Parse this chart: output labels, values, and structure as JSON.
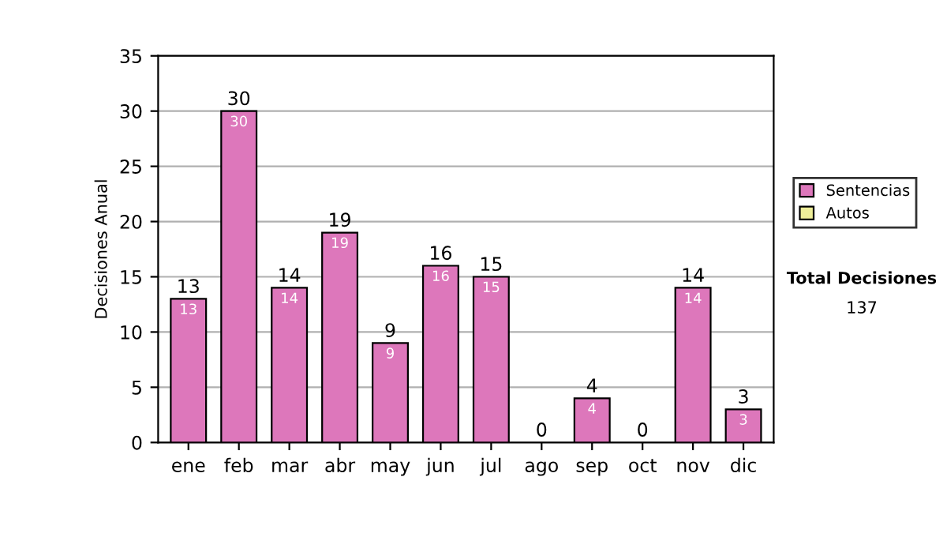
{
  "chart_data": {
    "type": "bar",
    "ylabel": "Decisiones Anual",
    "categories": [
      "ene",
      "feb",
      "mar",
      "abr",
      "may",
      "jun",
      "jul",
      "ago",
      "sep",
      "oct",
      "nov",
      "dic"
    ],
    "series": [
      {
        "name": "Sentencias",
        "color": "#dd77bb",
        "values": [
          13,
          30,
          14,
          19,
          9,
          16,
          15,
          0,
          4,
          0,
          14,
          3
        ],
        "value_labels": [
          "13",
          "30",
          "14",
          "19",
          "9",
          "16",
          "15",
          null,
          "4",
          null,
          "14",
          "3"
        ]
      },
      {
        "name": "Autos",
        "color": "#eeee99",
        "values": [
          0,
          0,
          0,
          0,
          0,
          0,
          0,
          0,
          0,
          0,
          0,
          0
        ]
      }
    ],
    "totals": [
      "13",
      "30",
      "14",
      "19",
      "9",
      "16",
      "15",
      "0",
      "4",
      "0",
      "14",
      "3"
    ],
    "ylim": [
      0,
      35
    ],
    "yticks": [
      0,
      5,
      10,
      15,
      20,
      25,
      30,
      35
    ],
    "grid": "y",
    "legend": "right",
    "annotations": [
      "Total Decisiones",
      "137"
    ]
  }
}
